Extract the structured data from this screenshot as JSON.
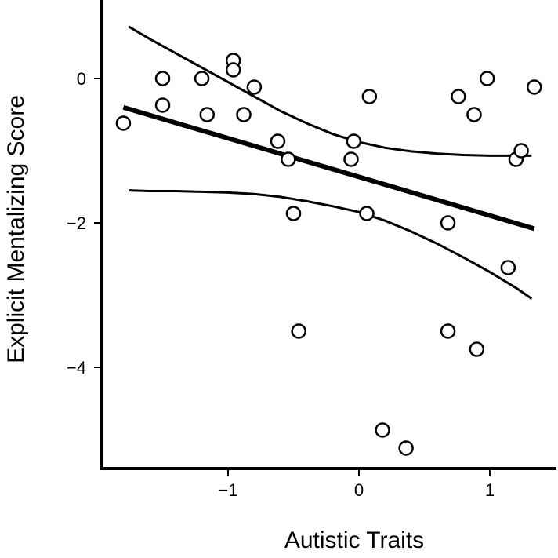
{
  "chart_data": {
    "type": "scatter",
    "title": "",
    "xlabel": "Autistic Traits",
    "ylabel": "Explicit Mentalizing Score",
    "xlim": [
      -1.95,
      1.5
    ],
    "ylim": [
      -5.4,
      1.0
    ],
    "xticks": [
      -1,
      0,
      1
    ],
    "yticks": [
      -4,
      -2,
      0
    ],
    "xtick_labels": [
      "−1",
      "0",
      "1"
    ],
    "ytick_labels": [
      "−4",
      "−2",
      "0"
    ],
    "grid": false,
    "marker": "open-circle",
    "color": "#000000",
    "points": [
      {
        "x": -1.8,
        "y": -0.62
      },
      {
        "x": -1.5,
        "y": 0.0
      },
      {
        "x": -1.5,
        "y": -0.37
      },
      {
        "x": -1.2,
        "y": 0.0
      },
      {
        "x": -1.16,
        "y": -0.5
      },
      {
        "x": -0.96,
        "y": 0.25
      },
      {
        "x": -0.96,
        "y": 0.12
      },
      {
        "x": -0.88,
        "y": -0.5
      },
      {
        "x": -0.8,
        "y": -0.12
      },
      {
        "x": -0.62,
        "y": -0.87
      },
      {
        "x": -0.54,
        "y": -1.12
      },
      {
        "x": -0.5,
        "y": -1.87
      },
      {
        "x": -0.46,
        "y": -3.5
      },
      {
        "x": -0.06,
        "y": -1.12
      },
      {
        "x": -0.04,
        "y": -0.87
      },
      {
        "x": 0.06,
        "y": -1.87
      },
      {
        "x": 0.08,
        "y": -0.25
      },
      {
        "x": 0.18,
        "y": -4.87
      },
      {
        "x": 0.36,
        "y": -5.12
      },
      {
        "x": 0.68,
        "y": -2.0
      },
      {
        "x": 0.68,
        "y": -3.5
      },
      {
        "x": 0.76,
        "y": -0.25
      },
      {
        "x": 0.88,
        "y": -0.5
      },
      {
        "x": 0.9,
        "y": -3.75
      },
      {
        "x": 0.98,
        "y": 0.0
      },
      {
        "x": 1.14,
        "y": -2.62
      },
      {
        "x": 1.2,
        "y": -1.12
      },
      {
        "x": 1.24,
        "y": -1.0
      },
      {
        "x": 1.34,
        "y": -0.12
      }
    ],
    "fit_line": {
      "x": [
        -1.8,
        1.34
      ],
      "y": [
        -0.4,
        -2.08
      ]
    },
    "ci_upper": {
      "x": [
        -1.76,
        -1.6,
        -1.4,
        -1.2,
        -1.0,
        -0.8,
        -0.6,
        -0.4,
        -0.2,
        0.0,
        0.2,
        0.4,
        0.6,
        0.8,
        1.0,
        1.2,
        1.32
      ],
      "y": [
        0.72,
        0.55,
        0.35,
        0.15,
        -0.05,
        -0.25,
        -0.45,
        -0.62,
        -0.77,
        -0.88,
        -0.96,
        -1.01,
        -1.04,
        -1.06,
        -1.07,
        -1.07,
        -1.07
      ]
    },
    "ci_lower": {
      "x": [
        -1.76,
        -1.6,
        -1.4,
        -1.2,
        -1.0,
        -0.8,
        -0.6,
        -0.4,
        -0.2,
        0.0,
        0.2,
        0.4,
        0.6,
        0.8,
        1.0,
        1.2,
        1.32
      ],
      "y": [
        -1.55,
        -1.56,
        -1.56,
        -1.57,
        -1.58,
        -1.6,
        -1.64,
        -1.7,
        -1.77,
        -1.85,
        -1.97,
        -2.12,
        -2.29,
        -2.48,
        -2.68,
        -2.9,
        -3.05
      ]
    }
  }
}
